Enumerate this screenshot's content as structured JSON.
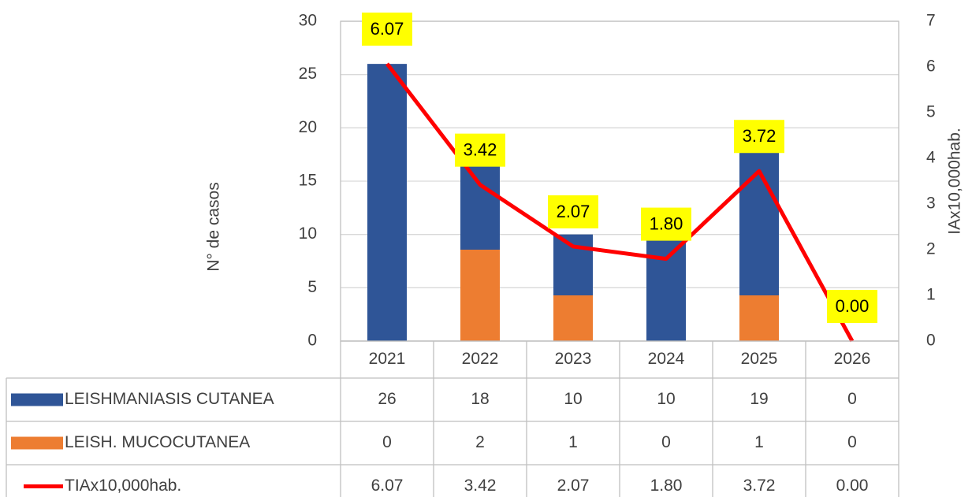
{
  "chart_data": {
    "type": "bar",
    "categories": [
      "2021",
      "2022",
      "2023",
      "2024",
      "2025",
      "2026"
    ],
    "series": [
      {
        "name": "LEISHMANIASIS CUTANEA",
        "color": "#2f5597",
        "type": "bar",
        "values": [
          26,
          18,
          10,
          10,
          19,
          0
        ]
      },
      {
        "name": "LEISH. MUCOCUTANEA",
        "color": "#ed7d31",
        "type": "bar",
        "axis": "y2",
        "values": [
          0,
          2,
          1,
          0,
          1,
          0
        ]
      },
      {
        "name": "TIAx10,000hab.",
        "color": "#ff0000",
        "type": "line",
        "axis": "y2",
        "values": [
          6.07,
          3.42,
          2.07,
          1.8,
          3.72,
          0
        ],
        "value_labels": [
          "6.07",
          "3.42",
          "2.07",
          "1.80",
          "3.72",
          "0.00"
        ]
      }
    ],
    "ylabel": "N° de casos",
    "y2label": "IAx10,000hab.",
    "ylim": [
      0,
      30
    ],
    "yticks": [
      0,
      5,
      10,
      15,
      20,
      25,
      30
    ],
    "y2lim": [
      0,
      7
    ],
    "y2ticks": [
      0,
      1,
      2,
      3,
      4,
      5,
      6,
      7
    ],
    "grid": true,
    "label_color": "#ffff00"
  }
}
